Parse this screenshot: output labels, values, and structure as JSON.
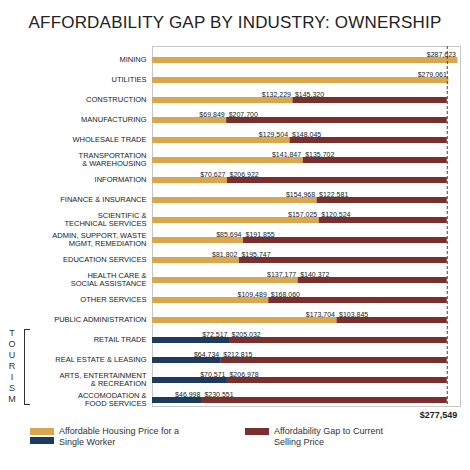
{
  "chart_data": {
    "type": "bar",
    "title": "AFFORDABILITY GAP BY INDUSTRY: OWNERSHIP",
    "orientation": "horizontal",
    "stacked": true,
    "data_labels": true,
    "tick_labels": false,
    "xlim": [
      0,
      290000
    ],
    "categories": [
      "MINING",
      "UTILITIES",
      "CONSTRUCTION",
      "MANUFACTURING",
      "WHOLESALE TRADE",
      "TRANSPORTATION & WAREHOUSING",
      "INFORMATION",
      "FINANCE & INSURANCE",
      "SCIENTIFIC & TECHNICAL SERVICES",
      "ADMIN, SUPPORT, WASTE MGMT, REMEDIATION",
      "EDUCATION SERVICES",
      "HEALTH CARE & SOCIAL ASSISTANCE",
      "OTHER SERVICES",
      "PUBLIC ADMINISTRATION",
      "RETAIL TRADE",
      "REAL ESTATE & LEASING",
      "ARTS, ENTERTAINMENT & RECREATION",
      "ACCOMODATION & FOOD SERVICES"
    ],
    "series": [
      {
        "name": "Affordable Housing Price for a Single Worker",
        "colors": [
          "#d9a84e",
          "#d9a84e",
          "#d9a84e",
          "#d9a84e",
          "#d9a84e",
          "#d9a84e",
          "#d9a84e",
          "#d9a84e",
          "#d9a84e",
          "#d9a84e",
          "#d9a84e",
          "#d9a84e",
          "#d9a84e",
          "#d9a84e",
          "#1e3a5c",
          "#1e3a5c",
          "#1e3a5c",
          "#1e3a5c"
        ],
        "values": [
          287623,
          279061,
          132229,
          69849,
          129504,
          141847,
          70627,
          154968,
          157025,
          85694,
          81802,
          137177,
          109489,
          173704,
          72517,
          64734,
          70571,
          46998
        ],
        "value_labels": [
          "$287,623",
          "$279,061",
          "$132,229",
          "$69,849",
          "$129,504",
          "$141,847",
          "$70,627",
          "$154,968",
          "$157,025",
          "$85,694",
          "$81,802",
          "$137,177",
          "$109,489",
          "$173,704",
          "$72,517",
          "$64,734",
          "$70,571",
          "$46,998"
        ]
      },
      {
        "name": "Affordability Gap to Current Selling Price",
        "color": "#7a2f2f",
        "values": [
          null,
          null,
          145320,
          207700,
          148045,
          135702,
          206922,
          122581,
          120524,
          191855,
          195747,
          140372,
          168060,
          103845,
          205032,
          212815,
          206978,
          230551
        ],
        "value_labels": [
          null,
          null,
          "$145,320",
          "$207,700",
          "$148,045",
          "$135,702",
          "$206,922",
          "$122,581",
          "$120,524",
          "$191,855",
          "$195,747",
          "$140,372",
          "$168,060",
          "$103,845",
          "$205,032",
          "$212,815",
          "$206,978",
          "$230,551"
        ]
      }
    ],
    "reference_line": {
      "value": 277549,
      "label": "$277,549"
    },
    "groups": [
      {
        "label": "TOURISM",
        "categories": [
          "RETAIL TRADE",
          "REAL ESTATE & LEASING",
          "ARTS, ENTERTAINMENT & RECREATION",
          "ACCOMODATION & FOOD SERVICES"
        ]
      }
    ]
  }
}
